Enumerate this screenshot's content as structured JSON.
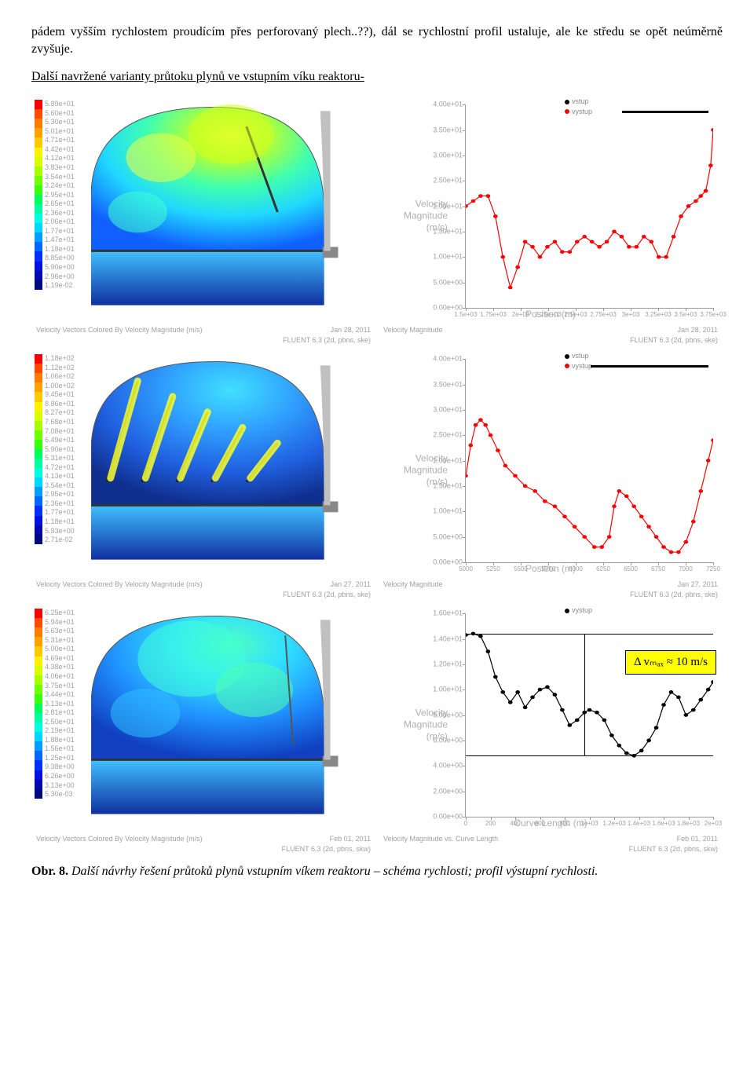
{
  "intro": {
    "p1a": "pádem vyšším rychlostem proudícím přes perforovaný plech..??), dál se rychlostní profil ustaluje, ale ke středu se opět neúměrně zvyšuje.",
    "p2": "Další navržené varianty průtoku plynů ve vstupním víku reaktoru-"
  },
  "palette": [
    "#ff0000",
    "#ff4800",
    "#ff7a00",
    "#ffa200",
    "#ffcb00",
    "#fff200",
    "#d8ff00",
    "#a8ff00",
    "#70ff00",
    "#38ff10",
    "#00ff58",
    "#00ffa0",
    "#00ffe0",
    "#00d8ff",
    "#009fff",
    "#0068ff",
    "#0030ff",
    "#0010e0",
    "#0008b0",
    "#000880"
  ],
  "rows": [
    {
      "scale": [
        "5.89e+01",
        "5.60e+01",
        "5.30e+01",
        "5.01e+01",
        "4.71e+01",
        "4.42e+01",
        "4.12e+01",
        "3.83e+01",
        "3.54e+01",
        "3.24e+01",
        "2.95e+01",
        "2.65e+01",
        "2.36e+01",
        "2.06e+01",
        "1.77e+01",
        "1.47e+01",
        "1.18e+01",
        "8.85e+00",
        "5.90e+00",
        "2.96e+00",
        "1.19e-02"
      ],
      "leftFooterL": "Velocity Vectors Colored By Velocity Magnitude (m/s)",
      "leftFooterR": "Jan 28, 2011\nFLUENT 6.3 (2d, pbns, ske)",
      "legend": [
        "vstup",
        "vystup"
      ],
      "legendColors": [
        "#000",
        "#f00"
      ],
      "yTicks": [
        "4.00e+01",
        "3.50e+01",
        "3.00e+01",
        "2.50e+01",
        "2.00e+01",
        "1.50e+01",
        "1.00e+01",
        "5.00e+00",
        "0.00e+00"
      ],
      "yMax": 40,
      "xTicks": [
        "1.5e+03",
        "1.75e+03",
        "2e+03",
        "2.25e+03",
        "2.5e+03",
        "2.75e+03",
        "3e+03",
        "3.25e+03",
        "3.5e+03",
        "3.75e+03"
      ],
      "xLabel": "Position (m)",
      "rightFooterL": "Velocity Magnitude",
      "rightFooterR": "Jan 28, 2011\nFLUENT 6.3 (2d, pbns, ske)",
      "series": [
        {
          "color": "#ff0000",
          "pts": [
            [
              0,
              20
            ],
            [
              3,
              21
            ],
            [
              6,
              22
            ],
            [
              9,
              22
            ],
            [
              12,
              18
            ],
            [
              15,
              10
            ],
            [
              18,
              4
            ],
            [
              21,
              8
            ],
            [
              24,
              13
            ],
            [
              27,
              12
            ],
            [
              30,
              10
            ],
            [
              33,
              12
            ],
            [
              36,
              13
            ],
            [
              39,
              11
            ],
            [
              42,
              11
            ],
            [
              45,
              13
            ],
            [
              48,
              14
            ],
            [
              51,
              13
            ],
            [
              54,
              12
            ],
            [
              57,
              13
            ],
            [
              60,
              15
            ],
            [
              63,
              14
            ],
            [
              66,
              12
            ],
            [
              69,
              12
            ],
            [
              72,
              14
            ],
            [
              75,
              13
            ],
            [
              78,
              10
            ],
            [
              81,
              10
            ],
            [
              84,
              14
            ],
            [
              87,
              18
            ],
            [
              90,
              20
            ],
            [
              93,
              21
            ],
            [
              95,
              22
            ],
            [
              97,
              23
            ],
            [
              99,
              28
            ],
            [
              100,
              35
            ]
          ]
        }
      ],
      "simVariant": 1
    },
    {
      "scale": [
        "1.18e+02",
        "1.12e+02",
        "1.06e+02",
        "1.00e+02",
        "9.45e+01",
        "8.86e+01",
        "8.27e+01",
        "7.68e+01",
        "7.08e+01",
        "6.49e+01",
        "5.90e+01",
        "5.31e+01",
        "4.72e+01",
        "4.13e+01",
        "3.54e+01",
        "2.95e+01",
        "2.36e+01",
        "1.77e+01",
        "1.18e+01",
        "5.93e+00",
        "2.71e-02"
      ],
      "leftFooterL": "Velocity Vectors Colored By Velocity Magnitude (m/s)",
      "leftFooterR": "Jan 27, 2011\nFLUENT 6.3 (2d, pbns, ske)",
      "legend": [
        "vstup",
        "vystup"
      ],
      "legendColors": [
        "#000",
        "#f00"
      ],
      "yTicks": [
        "4.00e+01",
        "3.50e+01",
        "3.00e+01",
        "2.50e+01",
        "2.00e+01",
        "1.50e+01",
        "1.00e+01",
        "5.00e+00",
        "0.00e+00"
      ],
      "yMax": 40,
      "xTicks": [
        "5000",
        "5250",
        "5500",
        "5750",
        "6000",
        "6250",
        "6500",
        "6750",
        "7000",
        "7250"
      ],
      "xLabel": "Position (m)",
      "rightFooterL": "Velocity Magnitude",
      "rightFooterR": "Jan 27, 2011\nFLUENT 6.3 (2d, pbns, ske)",
      "series": [
        {
          "color": "#ff0000",
          "pts": [
            [
              0,
              17
            ],
            [
              2,
              23
            ],
            [
              4,
              27
            ],
            [
              6,
              28
            ],
            [
              8,
              27
            ],
            [
              10,
              25
            ],
            [
              13,
              22
            ],
            [
              16,
              19
            ],
            [
              20,
              17
            ],
            [
              24,
              15
            ],
            [
              28,
              14
            ],
            [
              32,
              12
            ],
            [
              36,
              11
            ],
            [
              40,
              9
            ],
            [
              44,
              7
            ],
            [
              48,
              5
            ],
            [
              52,
              3
            ],
            [
              55,
              3
            ],
            [
              58,
              5
            ],
            [
              60,
              11
            ],
            [
              62,
              14
            ],
            [
              65,
              13
            ],
            [
              68,
              11
            ],
            [
              71,
              9
            ],
            [
              74,
              7
            ],
            [
              77,
              5
            ],
            [
              80,
              3
            ],
            [
              83,
              2
            ],
            [
              86,
              2
            ],
            [
              89,
              4
            ],
            [
              92,
              8
            ],
            [
              95,
              14
            ],
            [
              98,
              20
            ],
            [
              100,
              24
            ]
          ]
        }
      ],
      "simVariant": 2
    },
    {
      "scale": [
        "6.25e+01",
        "5.94e+01",
        "5.63e+01",
        "5.31e+01",
        "5.00e+01",
        "4.69e+01",
        "4.38e+01",
        "4.06e+01",
        "3.75e+01",
        "3.44e+01",
        "3.13e+01",
        "2.81e+01",
        "2.50e+01",
        "2.19e+01",
        "1.88e+01",
        "1.56e+01",
        "1.25e+01",
        "9.38e+00",
        "6.26e+00",
        "3.13e+00",
        "5.30e-03"
      ],
      "leftFooterL": "Velocity Vectors Colored By Velocity Magnitude (m/s)",
      "leftFooterR": "Feb 01, 2011\nFLUENT 6.3 (2d, pbns, skw)",
      "legend": [
        "vystup"
      ],
      "legendColors": [
        "#000"
      ],
      "yTicks": [
        "1.60e+01",
        "1.40e+01",
        "1.20e+01",
        "1.00e+01",
        "8.00e+00",
        "6.00e+00",
        "4.00e+00",
        "2.00e+00",
        "0.00e+00"
      ],
      "yMax": 16,
      "xTicks": [
        "0",
        "200",
        "400",
        "600",
        "800",
        "1e+03",
        "1.2e+03",
        "1.4e+03",
        "1.6e+03",
        "1.8e+03",
        "2e+03"
      ],
      "xLabel": "Curve Length (m)",
      "rightFooterL": "Velocity Magnitude vs. Curve Length",
      "rightFooterR": "Feb 01, 2011\nFLUENT 6.3 (2d, pbns, skw)",
      "series": [
        {
          "color": "#000000",
          "pts": [
            [
              0,
              14.3
            ],
            [
              3,
              14.4
            ],
            [
              6,
              14.2
            ],
            [
              9,
              13
            ],
            [
              12,
              11
            ],
            [
              15,
              9.8
            ],
            [
              18,
              9.0
            ],
            [
              21,
              9.8
            ],
            [
              24,
              8.6
            ],
            [
              27,
              9.4
            ],
            [
              30,
              10.0
            ],
            [
              33,
              10.2
            ],
            [
              36,
              9.6
            ],
            [
              39,
              8.4
            ],
            [
              42,
              7.2
            ],
            [
              45,
              7.6
            ],
            [
              48,
              8.2
            ],
            [
              50,
              8.4
            ],
            [
              53,
              8.2
            ],
            [
              56,
              7.6
            ],
            [
              59,
              6.4
            ],
            [
              62,
              5.6
            ],
            [
              65,
              5.0
            ],
            [
              68,
              4.8
            ],
            [
              71,
              5.2
            ],
            [
              74,
              6.0
            ],
            [
              77,
              7.0
            ],
            [
              80,
              8.8
            ],
            [
              83,
              9.8
            ],
            [
              86,
              9.4
            ],
            [
              89,
              8.0
            ],
            [
              92,
              8.4
            ],
            [
              95,
              9.2
            ],
            [
              98,
              10.0
            ],
            [
              100,
              10.6
            ]
          ]
        }
      ],
      "simVariant": 3,
      "callout": "Δ vₘₐₓ ≈ 10 m/s"
    }
  ],
  "caption": {
    "label": "Obr. 8.",
    "text": " Další návrhy řešení průtoků plynů vstupním víkem reaktoru – schéma rychlosti; profil výstupní rychlosti."
  },
  "vAxisLabel1": "Velocity",
  "vAxisLabel2": "Magnitude",
  "vAxisLabel3": "(m/s)"
}
